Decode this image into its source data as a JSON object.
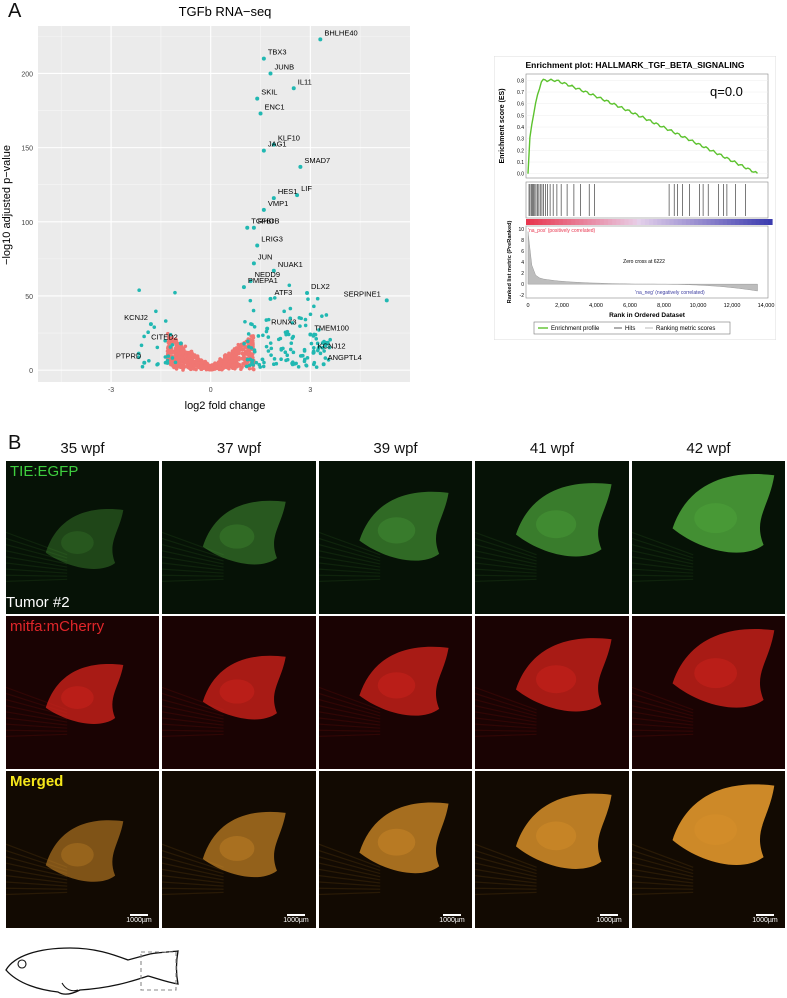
{
  "panel_a": {
    "letter": "A",
    "volcano": {
      "title": "TGFb RNA−seq",
      "xlabel": "log2 fold change",
      "ylabel": "−log10 adjusted p−value",
      "x_ticks": [
        "-3",
        "0",
        "3"
      ],
      "y_ticks": [
        "0",
        "50",
        "100",
        "150",
        "200"
      ],
      "genes": [
        {
          "name": "BHLHE40",
          "x": 3.3,
          "y": 223
        },
        {
          "name": "TBX3",
          "x": 1.6,
          "y": 210
        },
        {
          "name": "JUNB",
          "x": 1.8,
          "y": 200
        },
        {
          "name": "IL11",
          "x": 2.5,
          "y": 190
        },
        {
          "name": "SKIL",
          "x": 1.4,
          "y": 183
        },
        {
          "name": "ENC1",
          "x": 1.5,
          "y": 173
        },
        {
          "name": "KLF10",
          "x": 1.9,
          "y": 152
        },
        {
          "name": "JAG1",
          "x": 1.6,
          "y": 148
        },
        {
          "name": "SMAD7",
          "x": 2.7,
          "y": 137
        },
        {
          "name": "LIF",
          "x": 2.6,
          "y": 118
        },
        {
          "name": "HES1",
          "x": 1.9,
          "y": 116
        },
        {
          "name": "VMP1",
          "x": 1.6,
          "y": 108
        },
        {
          "name": "TGFBI",
          "x": 1.1,
          "y": 96
        },
        {
          "name": "RHOB",
          "x": 1.3,
          "y": 96
        },
        {
          "name": "LRIG3",
          "x": 1.4,
          "y": 84
        },
        {
          "name": "JUN",
          "x": 1.3,
          "y": 72
        },
        {
          "name": "NUAK1",
          "x": 1.9,
          "y": 67
        },
        {
          "name": "NEDD9",
          "x": 1.2,
          "y": 60
        },
        {
          "name": "DLX2",
          "x": 2.9,
          "y": 52
        },
        {
          "name": "PMEPA1",
          "x": 1.0,
          "y": 56
        },
        {
          "name": "SERPINE1",
          "x": 5.3,
          "y": 47
        },
        {
          "name": "ATF3",
          "x": 1.8,
          "y": 48
        },
        {
          "name": "KCNJ2",
          "x": -1.8,
          "y": 31
        },
        {
          "name": "RUNX3",
          "x": 1.7,
          "y": 28
        },
        {
          "name": "TMEM100",
          "x": 3.0,
          "y": 24
        },
        {
          "name": "CITED2",
          "x": -0.9,
          "y": 18
        },
        {
          "name": "KCNJ12",
          "x": 3.1,
          "y": 12
        },
        {
          "name": "PTPRD",
          "x": -2.0,
          "y": 5
        },
        {
          "name": "ANGPTL4",
          "x": 3.4,
          "y": 4
        }
      ]
    },
    "gsea": {
      "title": "Enrichment plot: HALLMARK_TGF_BETA_SIGNALING",
      "q_label": "q=0.0",
      "es_ylabel": "Enrichment score (ES)",
      "es_ticks": [
        "0.8",
        "0.7",
        "0.6",
        "0.5",
        "0.4",
        "0.3",
        "0.2",
        "0.1",
        "0.0"
      ],
      "rank_ylabel": "Ranked list metric (PreRanked)",
      "rank_ticks": [
        "10",
        "8",
        "6",
        "4",
        "2",
        "0",
        "-2"
      ],
      "na_pos": "'na_pos' (positively correlated)",
      "na_neg": "'na_neg' (negatively correlated)",
      "zero_cross": "Zero cross at 6222",
      "x_ticks": [
        "0",
        "2,000",
        "4,000",
        "6,000",
        "8,000",
        "10,000",
        "12,000",
        "14,000"
      ],
      "xlabel": "Rank in Ordered Dataset",
      "legend": [
        "Enrichment profile",
        "Hits",
        "Ranking metric scores"
      ],
      "colors": {
        "profile": "#5cc22e",
        "pos": "#e8364f",
        "neg": "#3b3ca0"
      }
    }
  },
  "panel_b": {
    "letter": "B",
    "columns": [
      "35 wpf",
      "37 wpf",
      "39 wpf",
      "41 wpf",
      "42 wpf"
    ],
    "rows": [
      {
        "label": "TIE:EGFP",
        "color": "#3ecf3e",
        "base": "#061206",
        "tumor": "#4fa83c"
      },
      {
        "label": "mitfa:mCherry",
        "color": "#e0262a",
        "base": "#1a0303",
        "tumor": "#d8241c"
      },
      {
        "label": "Merged",
        "color": "#f5e61a",
        "base": "#120a02",
        "tumor": "#d8902a"
      }
    ],
    "tumor_label": "Tumor #2",
    "scale_bar": "1000µm"
  }
}
